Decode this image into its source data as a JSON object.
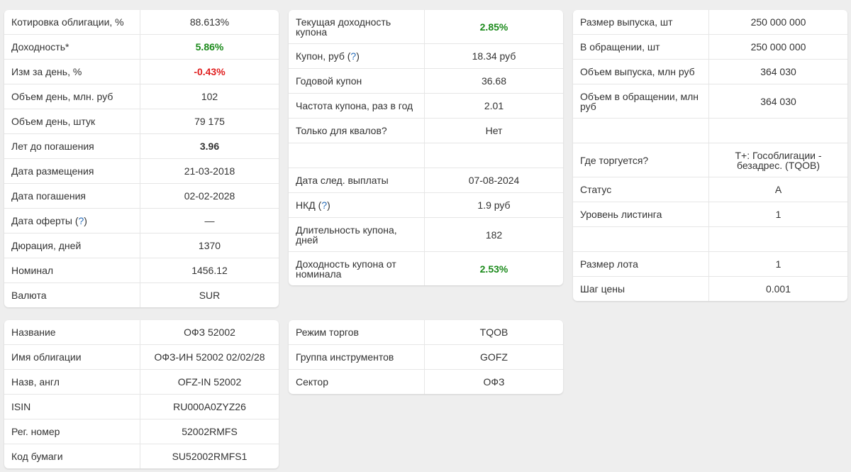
{
  "colors": {
    "positive": "#1b8a1b",
    "negative": "#e02020",
    "link": "#2a6db8"
  },
  "card1": {
    "rows": [
      {
        "label": "Котировка облигации, %",
        "value": "88.613%"
      },
      {
        "label": "Доходность*",
        "value": "5.86%"
      },
      {
        "label": "Изм за день, %",
        "value": "-0.43%"
      },
      {
        "label": "Объем день, млн. руб",
        "value": "102"
      },
      {
        "label": "Объем день, штук",
        "value": "79 175"
      },
      {
        "label": "Лет до погашения",
        "value": "3.96"
      },
      {
        "label": "Дата размещения",
        "value": "21-03-2018"
      },
      {
        "label": "Дата погашения",
        "value": "02-02-2028"
      },
      {
        "label": "Дата оферты (",
        "help": "?",
        "suffix": ")",
        "value": "—"
      },
      {
        "label": "Дюрация, дней",
        "value": "1370"
      },
      {
        "label": "Номинал",
        "value": "1456.12"
      },
      {
        "label": "Валюта",
        "value": "SUR"
      }
    ]
  },
  "card2": {
    "rows": [
      {
        "label": "Текущая доходность купона",
        "value": "2.85%"
      },
      {
        "label": "Купон, руб (",
        "help": "?",
        "suffix": ")",
        "value": "18.34 руб"
      },
      {
        "label": "Годовой купон",
        "value": "36.68"
      },
      {
        "label": "Частота купона, раз в год",
        "value": "2.01"
      },
      {
        "label": "Только для квалов?",
        "value": "Нет"
      },
      {
        "label": "",
        "value": ""
      },
      {
        "label": "Дата след. выплаты",
        "value": "07-08-2024"
      },
      {
        "label": "НКД (",
        "help": "?",
        "suffix": ")",
        "value": "1.9 руб"
      },
      {
        "label": "Длительность купона, дней",
        "value": "182"
      },
      {
        "label": "Доходность купона от номинала",
        "value": "2.53%"
      }
    ]
  },
  "card3": {
    "rows": [
      {
        "label": "Размер выпуска, шт",
        "value": "250 000 000"
      },
      {
        "label": "В обращении, шт",
        "value": "250 000 000"
      },
      {
        "label": "Объем выпуска, млн руб",
        "value": "364 030"
      },
      {
        "label": "Объем в обращении, млн руб",
        "value": "364 030"
      },
      {
        "label": "",
        "value": ""
      },
      {
        "label": "Где торгуется?",
        "value": "Т+: Гособлигации - безадрес. (TQOB)"
      },
      {
        "label": "Статус",
        "value": "А"
      },
      {
        "label": "Уровень листинга",
        "value": "1"
      },
      {
        "label": "",
        "value": ""
      },
      {
        "label": "Размер лота",
        "value": "1"
      },
      {
        "label": "Шаг цены",
        "value": "0.001"
      }
    ]
  },
  "card4": {
    "rows": [
      {
        "label": "Название",
        "value": "ОФЗ 52002"
      },
      {
        "label": "Имя облигации",
        "value": "ОФЗ-ИН 52002 02/02/28"
      },
      {
        "label": "Назв, англ",
        "value": "OFZ-IN 52002"
      },
      {
        "label": "ISIN",
        "value": "RU000A0ZYZ26"
      },
      {
        "label": "Рег. номер",
        "value": "52002RMFS"
      },
      {
        "label": "Код бумаги",
        "value": "SU52002RMFS1"
      }
    ]
  },
  "card5": {
    "rows": [
      {
        "label": "Режим торгов",
        "value": "TQOB"
      },
      {
        "label": "Группа инструментов",
        "value": "GOFZ"
      },
      {
        "label": "Сектор",
        "value": "ОФЗ"
      }
    ]
  }
}
